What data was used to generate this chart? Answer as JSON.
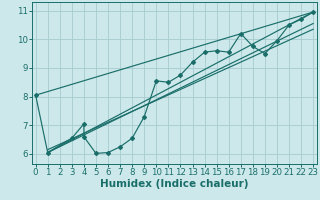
{
  "bg_color": "#cce8ea",
  "grid_color": "#aacfd2",
  "line_color": "#1a6e6a",
  "xlabel": "Humidex (Indice chaleur)",
  "xlabel_fontsize": 7.5,
  "tick_fontsize": 6.2,
  "yticks": [
    6,
    7,
    8,
    9,
    10,
    11
  ],
  "xticks": [
    0,
    1,
    2,
    3,
    4,
    5,
    6,
    7,
    8,
    9,
    10,
    11,
    12,
    13,
    14,
    15,
    16,
    17,
    18,
    19,
    20,
    21,
    22,
    23
  ],
  "xlim": [
    -0.3,
    23.3
  ],
  "ylim": [
    5.65,
    11.3
  ],
  "series": [
    [
      0,
      8.05
    ],
    [
      1,
      6.05
    ],
    [
      3,
      6.55
    ],
    [
      4,
      7.05
    ],
    [
      4,
      6.6
    ],
    [
      5,
      6.02
    ],
    [
      6,
      6.05
    ],
    [
      7,
      6.25
    ],
    [
      8,
      6.55
    ],
    [
      9,
      7.3
    ],
    [
      10,
      8.55
    ],
    [
      11,
      8.5
    ],
    [
      12,
      8.75
    ],
    [
      13,
      9.2
    ],
    [
      14,
      9.55
    ],
    [
      15,
      9.6
    ],
    [
      16,
      9.55
    ],
    [
      17,
      10.2
    ],
    [
      18,
      9.75
    ],
    [
      19,
      9.5
    ],
    [
      20,
      9.95
    ],
    [
      21,
      10.5
    ],
    [
      22,
      10.7
    ],
    [
      23,
      10.95
    ]
  ],
  "trend_lines": [
    [
      [
        0,
        8.05
      ],
      [
        23,
        10.95
      ]
    ],
    [
      [
        1,
        6.05
      ],
      [
        23,
        10.95
      ]
    ],
    [
      [
        1,
        6.05
      ],
      [
        23,
        10.55
      ]
    ],
    [
      [
        1,
        6.15
      ],
      [
        23,
        10.35
      ]
    ]
  ]
}
